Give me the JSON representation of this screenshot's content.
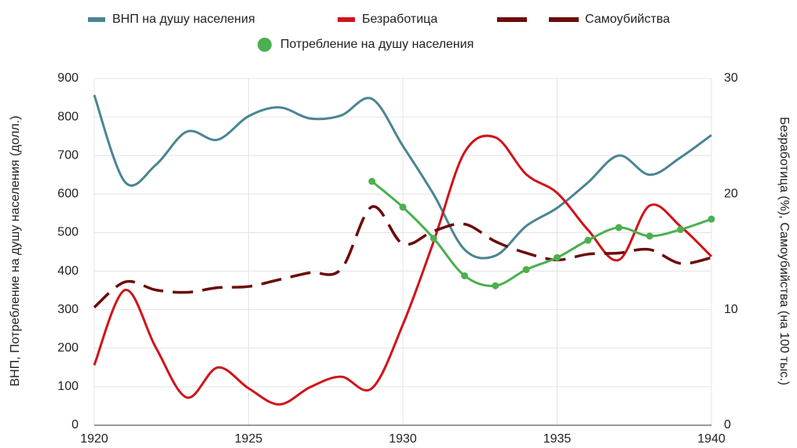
{
  "chart_data": {
    "type": "line",
    "x": [
      1920,
      1921,
      1922,
      1923,
      1924,
      1925,
      1926,
      1927,
      1928,
      1929,
      1930,
      1931,
      1932,
      1933,
      1934,
      1935,
      1936,
      1937,
      1938,
      1939,
      1940
    ],
    "series": [
      {
        "name": "ВНП на душу населения",
        "color": "#4a8594",
        "axis": "y",
        "style": "solid",
        "values": [
          857,
          631,
          676,
          762,
          741,
          802,
          825,
          796,
          804,
          847,
          725,
          599,
          456,
          440,
          517,
          564,
          630,
          700,
          650,
          695,
          753
        ]
      },
      {
        "name": "Безработица",
        "color": "#d0141a",
        "axis": "y2",
        "style": "solid",
        "values": [
          5.2,
          11.7,
          6.7,
          2.4,
          5.0,
          3.2,
          1.8,
          3.3,
          4.2,
          3.2,
          8.7,
          15.9,
          23.6,
          24.9,
          21.7,
          20.1,
          16.9,
          14.3,
          19.0,
          17.2,
          14.6
        ]
      },
      {
        "name": "Самоубийства",
        "color": "#6b0a0a",
        "axis": "y2",
        "style": "dashed",
        "values": [
          10.2,
          12.4,
          11.7,
          11.5,
          11.9,
          12.0,
          12.6,
          13.2,
          13.5,
          18.9,
          15.7,
          16.8,
          17.4,
          15.9,
          14.9,
          14.3,
          14.8,
          14.9,
          15.2,
          14.0,
          14.5
        ]
      },
      {
        "name": "Потребление на душу населения",
        "color": "#4caf50",
        "axis": "y",
        "style": "points",
        "values": [
          null,
          null,
          null,
          null,
          null,
          null,
          null,
          null,
          null,
          633,
          566,
          485,
          388,
          362,
          404,
          435,
          480,
          513,
          491,
          508,
          535
        ]
      }
    ],
    "xlim": [
      1920,
      1940
    ],
    "xticks": [
      1920,
      1925,
      1930,
      1935,
      1940
    ],
    "ylim": [
      0,
      900
    ],
    "yticks": [
      0,
      100,
      200,
      300,
      400,
      500,
      600,
      700,
      800,
      900
    ],
    "y2lim": [
      0,
      30
    ],
    "y2ticks": [
      0,
      10,
      20,
      30
    ],
    "ylabel": "ВНП, Потребление на душу населения (долл.)",
    "y2label": "Безработица (%), Самоубийства (на 100 тыс.)",
    "grid": true,
    "legend": "top"
  }
}
